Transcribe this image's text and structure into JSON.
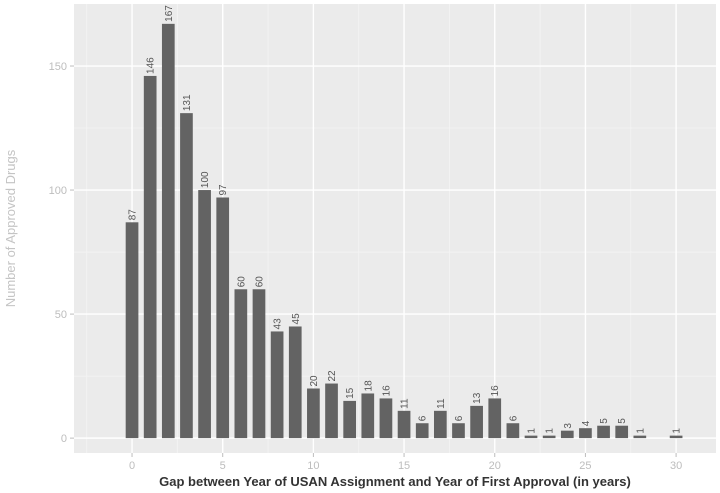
{
  "chart_data": {
    "type": "bar",
    "title": "",
    "xlabel": "Gap between Year of USAN Assignment and Year of First Approval (in years)",
    "ylabel": "Number of Approved Drugs",
    "x": [
      0,
      1,
      2,
      3,
      4,
      5,
      6,
      7,
      8,
      9,
      10,
      11,
      12,
      13,
      14,
      15,
      16,
      17,
      18,
      19,
      20,
      21,
      22,
      23,
      24,
      25,
      26,
      27,
      28,
      30
    ],
    "values": [
      87,
      146,
      167,
      131,
      100,
      97,
      60,
      60,
      43,
      45,
      20,
      22,
      15,
      18,
      16,
      11,
      6,
      11,
      6,
      13,
      16,
      6,
      1,
      1,
      3,
      4,
      5,
      5,
      1,
      1
    ],
    "xlim": [
      -3.2,
      32.2
    ],
    "ylim": [
      -6,
      175
    ],
    "xticks": [
      0,
      5,
      10,
      15,
      20,
      25,
      30
    ],
    "yticks": [
      0,
      50,
      100,
      150
    ],
    "grid": true,
    "colors": {
      "bar": "#636363",
      "panel": "#ebebeb",
      "grid_major": "#ffffff",
      "grid_minor": "#f4f4f4"
    }
  }
}
